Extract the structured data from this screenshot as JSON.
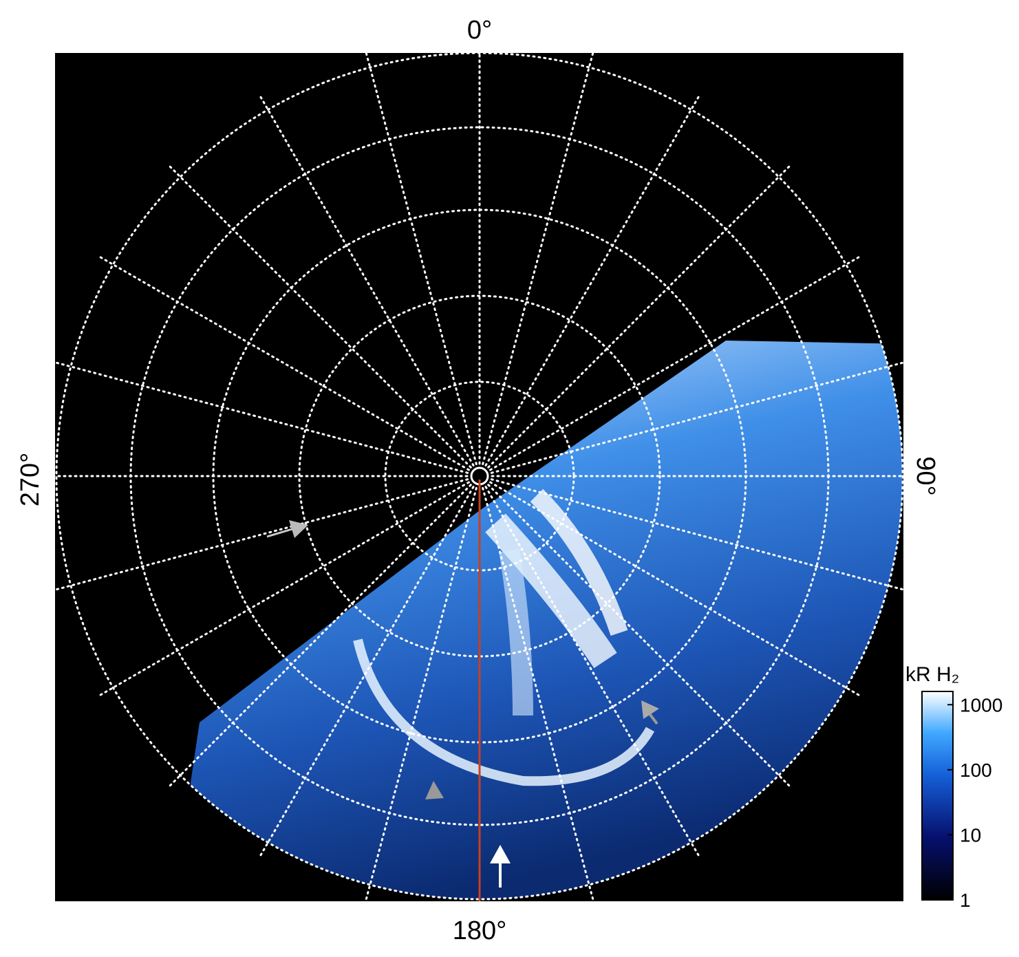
{
  "axis_labels": {
    "top": "0°",
    "right": "90°",
    "bottom": "180°",
    "left": "270°"
  },
  "colorbar": {
    "label": "kR H₂",
    "scale": "log",
    "lim": [
      1,
      1600
    ],
    "ticks": [
      1,
      10,
      100,
      1000
    ]
  }
}
